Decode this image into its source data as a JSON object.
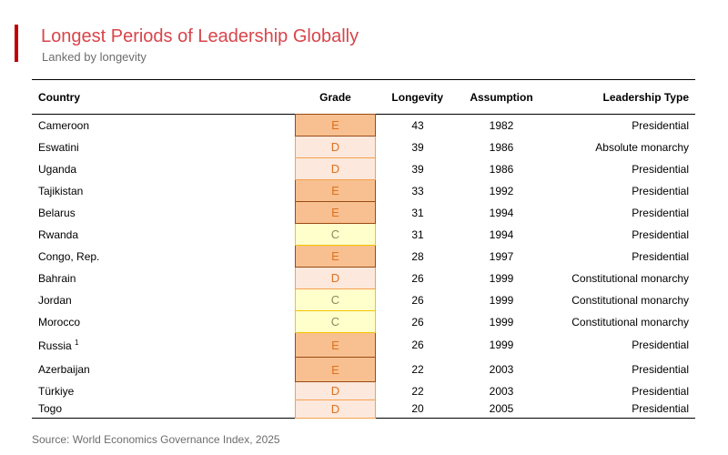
{
  "title": "Longest Periods of Leadership Globally",
  "subtitle": "Lanked by longevity",
  "headers": [
    "Country",
    "Grade",
    "Longevity",
    "Assumption",
    "Leadership Type"
  ],
  "grade_colors": {
    "E": "#f8c090",
    "D": "#fce8dc",
    "C": "#ffffcc"
  },
  "rows": [
    {
      "country": "Cameroon",
      "note": "",
      "grade": "E",
      "longevity": "43",
      "assumption": "1982",
      "type": "Presidential"
    },
    {
      "country": "Eswatini",
      "note": "",
      "grade": "D",
      "longevity": "39",
      "assumption": "1986",
      "type": "Absolute monarchy"
    },
    {
      "country": "Uganda",
      "note": "",
      "grade": "D",
      "longevity": "39",
      "assumption": "1986",
      "type": "Presidential"
    },
    {
      "country": "Tajikistan",
      "note": "",
      "grade": "E",
      "longevity": "33",
      "assumption": "1992",
      "type": "Presidential"
    },
    {
      "country": "Belarus",
      "note": "",
      "grade": "E",
      "longevity": "31",
      "assumption": "1994",
      "type": "Presidential"
    },
    {
      "country": "Rwanda",
      "note": "",
      "grade": "C",
      "longevity": "31",
      "assumption": "1994",
      "type": "Presidential"
    },
    {
      "country": "Congo, Rep.",
      "note": "",
      "grade": "E",
      "longevity": "28",
      "assumption": "1997",
      "type": "Presidential"
    },
    {
      "country": "Bahrain",
      "note": "",
      "grade": "D",
      "longevity": "26",
      "assumption": "1999",
      "type": "Constitutional monarchy"
    },
    {
      "country": "Jordan",
      "note": "",
      "grade": "C",
      "longevity": "26",
      "assumption": "1999",
      "type": "Constitutional monarchy"
    },
    {
      "country": "Morocco",
      "note": "",
      "grade": "C",
      "longevity": "26",
      "assumption": "1999",
      "type": "Constitutional monarchy"
    },
    {
      "country": "Russia",
      "note": "1",
      "grade": "E",
      "longevity": "26",
      "assumption": "1999",
      "type": "Presidential"
    },
    {
      "country": "Azerbaijan",
      "note": "",
      "grade": "E",
      "longevity": "22",
      "assumption": "2003",
      "type": "Presidential"
    },
    {
      "country": "Türkiye",
      "note": "",
      "grade": "D",
      "longevity": "22",
      "assumption": "2003",
      "type": "Presidential"
    },
    {
      "country": "Togo",
      "note": "",
      "grade": "D",
      "longevity": "20",
      "assumption": "2005",
      "type": "Presidential"
    }
  ],
  "source": "Source: World Economics Governance Index, 2025"
}
